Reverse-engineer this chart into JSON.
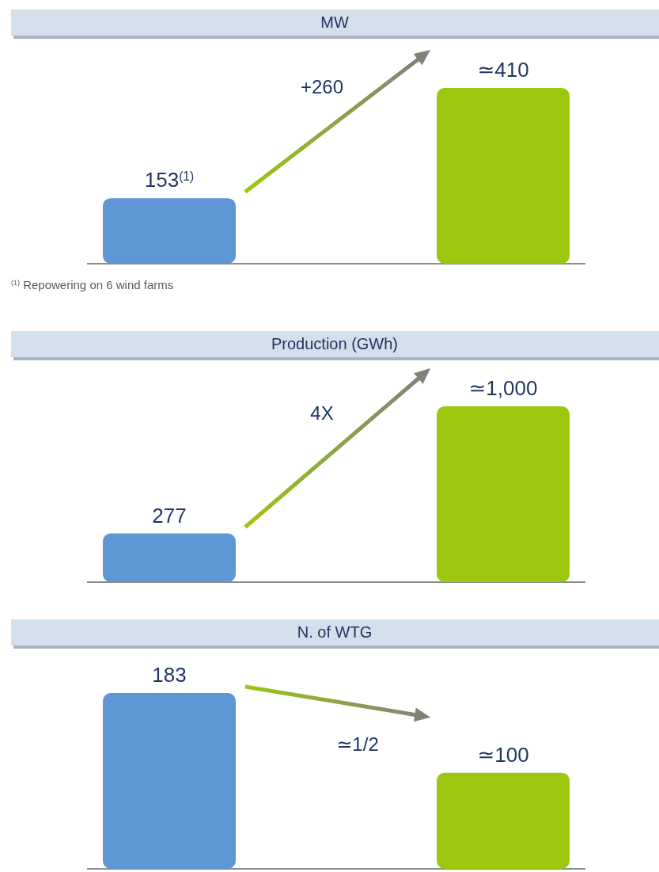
{
  "chart_data": [
    {
      "type": "bar",
      "title": "MW",
      "categories": [
        null,
        null
      ],
      "values": [
        153,
        410
      ],
      "colors": [
        "#5e96d6",
        "#9cc70f"
      ],
      "value_labels": [
        "153$^{(1)}$",
        "≃410"
      ],
      "annotations": [
        "+260",
        "$^{(1)}$ Repowering on 6 wind farms"
      ]
    },
    {
      "type": "bar",
      "title": "Production (GWh)",
      "categories": [
        null,
        null
      ],
      "values": [
        277,
        1000
      ],
      "colors": [
        "#5e96d6",
        "#9cc70f"
      ],
      "value_labels": [
        "277",
        "≃1,000"
      ],
      "annotations": [
        "4X"
      ]
    },
    {
      "type": "bar",
      "title": "N. of WTG",
      "categories": [
        null,
        null
      ],
      "values": [
        183,
        100
      ],
      "colors": [
        "#5e96d6",
        "#9cc70f"
      ],
      "value_labels": [
        "183",
        "≃100"
      ],
      "annotations": [
        "≃1/2"
      ]
    }
  ]
}
